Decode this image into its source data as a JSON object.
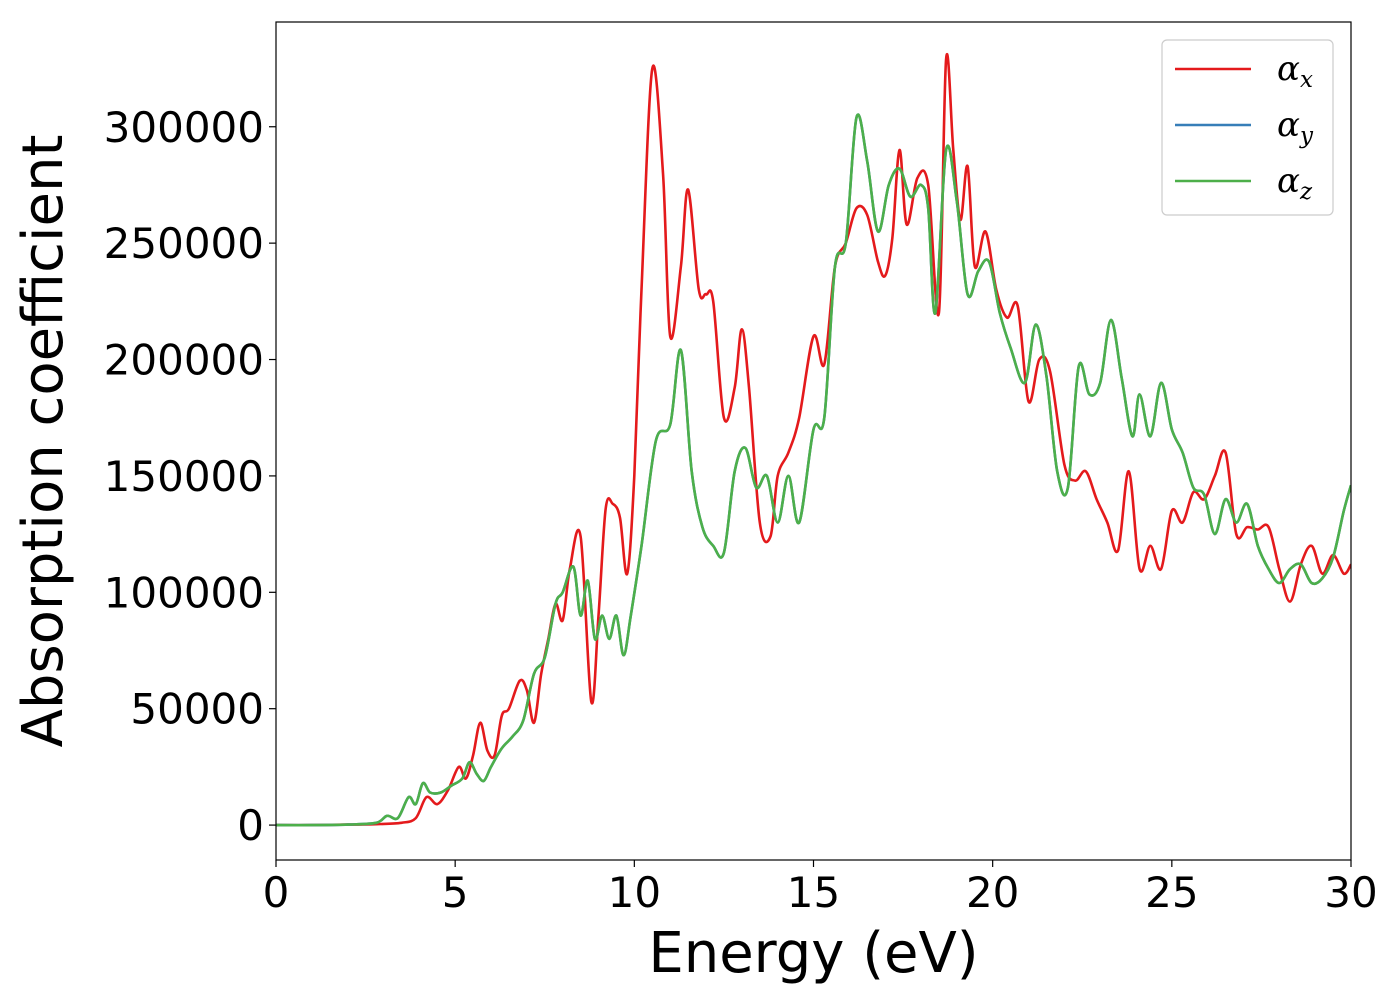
{
  "chart_data": {
    "type": "line",
    "title": "",
    "xlabel": "Energy (eV)",
    "ylabel": "Absorption coefficient",
    "xlim": [
      0,
      30
    ],
    "ylim": [
      -15000,
      345000
    ],
    "xticks": [
      0,
      5,
      10,
      15,
      20,
      25,
      30
    ],
    "xtick_labels": [
      "0",
      "5",
      "10",
      "15",
      "20",
      "25",
      "30"
    ],
    "yticks": [
      0,
      50000,
      100000,
      150000,
      200000,
      250000,
      300000
    ],
    "ytick_labels": [
      "0",
      "50000",
      "100000",
      "150000",
      "200000",
      "250000",
      "300000"
    ],
    "grid": false,
    "legend_position": "upper right",
    "series": [
      {
        "name": "α_x",
        "label_main": "α",
        "label_sub": "x",
        "color": "#e41a1c",
        "x": [
          0,
          1,
          2,
          2.8,
          3.5,
          3.9,
          4.2,
          4.5,
          4.8,
          5.1,
          5.3,
          5.5,
          5.7,
          5.9,
          6.1,
          6.3,
          6.5,
          6.8,
          7.0,
          7.2,
          7.4,
          7.6,
          7.8,
          8.0,
          8.2,
          8.5,
          8.8,
          9.0,
          9.2,
          9.4,
          9.6,
          9.8,
          10.0,
          10.2,
          10.5,
          10.8,
          11.0,
          11.3,
          11.5,
          11.8,
          12.0,
          12.2,
          12.5,
          12.8,
          13.0,
          13.2,
          13.5,
          13.8,
          14.0,
          14.3,
          14.6,
          15.0,
          15.3,
          15.6,
          15.9,
          16.2,
          16.5,
          16.8,
          17.0,
          17.2,
          17.4,
          17.6,
          17.9,
          18.2,
          18.5,
          18.7,
          18.9,
          19.1,
          19.3,
          19.5,
          19.8,
          20.1,
          20.4,
          20.7,
          21.0,
          21.3,
          21.6,
          22.0,
          22.3,
          22.6,
          22.9,
          23.2,
          23.5,
          23.8,
          24.1,
          24.4,
          24.7,
          25.0,
          25.3,
          25.6,
          25.9,
          26.2,
          26.5,
          26.8,
          27.1,
          27.4,
          27.7,
          28.0,
          28.3,
          28.6,
          28.9,
          29.2,
          29.5,
          29.8,
          30.0
        ],
        "y": [
          0,
          0,
          200,
          400,
          1000,
          3000,
          12000,
          9000,
          15000,
          25000,
          20000,
          30000,
          44000,
          32000,
          30000,
          47000,
          50000,
          62000,
          58000,
          44000,
          65000,
          80000,
          95000,
          88000,
          110000,
          124000,
          53000,
          90000,
          136000,
          138000,
          132000,
          108000,
          150000,
          230000,
          325000,
          280000,
          210000,
          240000,
          273000,
          230000,
          228000,
          225000,
          175000,
          188000,
          213000,
          188000,
          130000,
          124000,
          150000,
          160000,
          175000,
          210000,
          198000,
          240000,
          250000,
          265000,
          262000,
          242000,
          236000,
          252000,
          290000,
          258000,
          278000,
          275000,
          220000,
          329000,
          290000,
          260000,
          283000,
          240000,
          255000,
          230000,
          218000,
          223000,
          182000,
          200000,
          195000,
          155000,
          148000,
          152000,
          140000,
          130000,
          118000,
          152000,
          110000,
          120000,
          110000,
          135000,
          130000,
          143000,
          140000,
          150000,
          160000,
          125000,
          128000,
          127000,
          128000,
          110000,
          96000,
          112000,
          120000,
          108000,
          116000,
          108000,
          112000
        ]
      },
      {
        "name": "α_y",
        "label_main": "α",
        "label_sub": "y",
        "color": "#377eb8",
        "x": [
          0,
          1,
          2,
          2.8,
          3.1,
          3.4,
          3.7,
          3.9,
          4.1,
          4.3,
          4.6,
          4.9,
          5.2,
          5.4,
          5.6,
          5.8,
          6.0,
          6.3,
          6.6,
          6.9,
          7.2,
          7.5,
          7.8,
          8.0,
          8.3,
          8.5,
          8.7,
          8.9,
          9.1,
          9.3,
          9.5,
          9.7,
          9.9,
          10.2,
          10.6,
          11.0,
          11.3,
          11.6,
          11.9,
          12.2,
          12.5,
          12.8,
          13.1,
          13.4,
          13.7,
          14.0,
          14.3,
          14.6,
          15.0,
          15.3,
          15.6,
          15.9,
          16.2,
          16.5,
          16.8,
          17.1,
          17.4,
          17.7,
          18.0,
          18.2,
          18.4,
          18.7,
          19.0,
          19.3,
          19.6,
          19.9,
          20.2,
          20.5,
          20.9,
          21.2,
          21.5,
          21.8,
          22.1,
          22.4,
          22.7,
          23.0,
          23.3,
          23.6,
          23.9,
          24.1,
          24.4,
          24.7,
          25.0,
          25.3,
          25.6,
          25.9,
          26.2,
          26.5,
          26.8,
          27.1,
          27.4,
          27.7,
          28.0,
          28.3,
          28.6,
          28.9,
          29.2,
          29.5,
          29.8,
          30.0
        ],
        "y": [
          0,
          0,
          200,
          1000,
          4000,
          3000,
          12000,
          9000,
          18000,
          14000,
          14000,
          17000,
          20000,
          27000,
          22000,
          19000,
          25000,
          33000,
          38000,
          45000,
          65000,
          72000,
          95000,
          100000,
          111000,
          90000,
          105000,
          80000,
          90000,
          80000,
          90000,
          73000,
          90000,
          120000,
          165000,
          172000,
          204000,
          152000,
          128000,
          120000,
          117000,
          152000,
          162000,
          145000,
          150000,
          130000,
          150000,
          130000,
          170000,
          175000,
          240000,
          250000,
          304000,
          285000,
          255000,
          275000,
          282000,
          270000,
          275000,
          265000,
          220000,
          290000,
          268000,
          228000,
          238000,
          242000,
          220000,
          205000,
          190000,
          215000,
          193000,
          152000,
          145000,
          197000,
          185000,
          190000,
          217000,
          192000,
          167000,
          185000,
          167000,
          190000,
          170000,
          160000,
          145000,
          142000,
          125000,
          140000,
          130000,
          138000,
          120000,
          110000,
          104000,
          110000,
          112000,
          104000,
          106000,
          115000,
          135000,
          146000
        ]
      },
      {
        "name": "α_z",
        "label_main": "α",
        "label_sub": "z",
        "color": "#4daf4a",
        "x": [
          0,
          1,
          2,
          2.8,
          3.1,
          3.4,
          3.7,
          3.9,
          4.1,
          4.3,
          4.6,
          4.9,
          5.2,
          5.4,
          5.6,
          5.8,
          6.0,
          6.3,
          6.6,
          6.9,
          7.2,
          7.5,
          7.8,
          8.0,
          8.3,
          8.5,
          8.7,
          8.9,
          9.1,
          9.3,
          9.5,
          9.7,
          9.9,
          10.2,
          10.6,
          11.0,
          11.3,
          11.6,
          11.9,
          12.2,
          12.5,
          12.8,
          13.1,
          13.4,
          13.7,
          14.0,
          14.3,
          14.6,
          15.0,
          15.3,
          15.6,
          15.9,
          16.2,
          16.5,
          16.8,
          17.1,
          17.4,
          17.7,
          18.0,
          18.2,
          18.4,
          18.7,
          19.0,
          19.3,
          19.6,
          19.9,
          20.2,
          20.5,
          20.9,
          21.2,
          21.5,
          21.8,
          22.1,
          22.4,
          22.7,
          23.0,
          23.3,
          23.6,
          23.9,
          24.1,
          24.4,
          24.7,
          25.0,
          25.3,
          25.6,
          25.9,
          26.2,
          26.5,
          26.8,
          27.1,
          27.4,
          27.7,
          28.0,
          28.3,
          28.6,
          28.9,
          29.2,
          29.5,
          29.8,
          30.0
        ],
        "y": [
          0,
          0,
          200,
          1000,
          4000,
          3000,
          12000,
          9000,
          18000,
          14000,
          14000,
          17000,
          20000,
          27000,
          22000,
          19000,
          25000,
          33000,
          38000,
          45000,
          65000,
          72000,
          95000,
          100000,
          111000,
          90000,
          105000,
          80000,
          90000,
          80000,
          90000,
          73000,
          90000,
          120000,
          165000,
          172000,
          204000,
          152000,
          128000,
          120000,
          117000,
          152000,
          162000,
          145000,
          150000,
          130000,
          150000,
          130000,
          170000,
          175000,
          240000,
          250000,
          304000,
          285000,
          255000,
          275000,
          282000,
          270000,
          275000,
          265000,
          220000,
          290000,
          268000,
          228000,
          238000,
          242000,
          220000,
          205000,
          190000,
          215000,
          193000,
          152000,
          145000,
          197000,
          185000,
          190000,
          217000,
          192000,
          167000,
          185000,
          167000,
          190000,
          170000,
          160000,
          145000,
          142000,
          125000,
          140000,
          130000,
          138000,
          120000,
          110000,
          104000,
          110000,
          112000,
          104000,
          106000,
          115000,
          135000,
          146000
        ]
      }
    ]
  }
}
